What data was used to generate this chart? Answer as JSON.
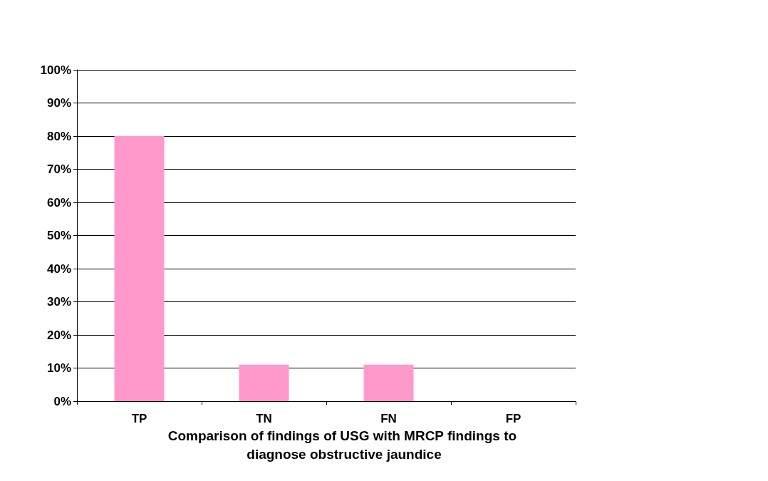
{
  "chart_data": {
    "type": "bar",
    "xlabel": "Comparison of findings of USG with MRCP findings to diagnose obstructive jaundice",
    "categories": [
      "TP",
      "TN",
      "FN",
      "FP"
    ],
    "values": [
      80,
      11,
      11,
      0
    ],
    "color": "#ff99cc",
    "ylim": [
      0,
      100
    ],
    "yticks": [
      {
        "value": 0,
        "label": "0%"
      },
      {
        "value": 10,
        "label": "10%"
      },
      {
        "value": 20,
        "label": "20%"
      },
      {
        "value": 30,
        "label": "30%"
      },
      {
        "value": 40,
        "label": "40%"
      },
      {
        "value": 50,
        "label": "50%"
      },
      {
        "value": 60,
        "label": "60%"
      },
      {
        "value": 70,
        "label": "70%"
      },
      {
        "value": 80,
        "label": "80%"
      },
      {
        "value": 90,
        "label": "90%"
      },
      {
        "value": 100,
        "label": "100%"
      }
    ],
    "grid": "y"
  }
}
